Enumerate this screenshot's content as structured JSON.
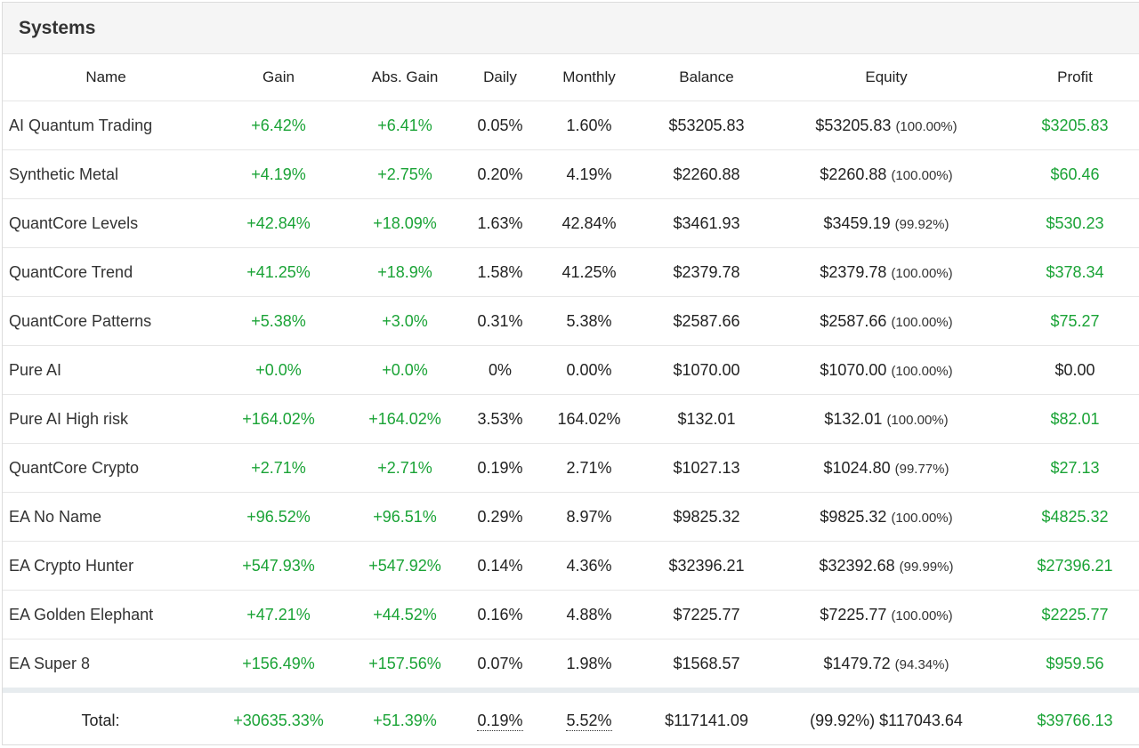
{
  "panel": {
    "title": "Systems"
  },
  "columns": {
    "name": "Name",
    "gain": "Gain",
    "abs_gain": "Abs. Gain",
    "daily": "Daily",
    "monthly": "Monthly",
    "balance": "Balance",
    "equity": "Equity",
    "profit": "Profit"
  },
  "rows": [
    {
      "name": "AI Quantum Trading",
      "gain": "+6.42%",
      "abs_gain": "+6.41%",
      "daily": "0.05%",
      "monthly": "1.60%",
      "balance": "$53205.83",
      "equity": "$53205.83",
      "equity_pct": "(100.00%)",
      "profit": "$3205.83",
      "profit_positive": true
    },
    {
      "name": "Synthetic Metal",
      "gain": "+4.19%",
      "abs_gain": "+2.75%",
      "daily": "0.20%",
      "monthly": "4.19%",
      "balance": "$2260.88",
      "equity": "$2260.88",
      "equity_pct": "(100.00%)",
      "profit": "$60.46",
      "profit_positive": true
    },
    {
      "name": "QuantCore Levels",
      "gain": "+42.84%",
      "abs_gain": "+18.09%",
      "daily": "1.63%",
      "monthly": "42.84%",
      "balance": "$3461.93",
      "equity": "$3459.19",
      "equity_pct": "(99.92%)",
      "profit": "$530.23",
      "profit_positive": true
    },
    {
      "name": "QuantCore Trend",
      "gain": "+41.25%",
      "abs_gain": "+18.9%",
      "daily": "1.58%",
      "monthly": "41.25%",
      "balance": "$2379.78",
      "equity": "$2379.78",
      "equity_pct": "(100.00%)",
      "profit": "$378.34",
      "profit_positive": true
    },
    {
      "name": "QuantCore Patterns",
      "gain": "+5.38%",
      "abs_gain": "+3.0%",
      "daily": "0.31%",
      "monthly": "5.38%",
      "balance": "$2587.66",
      "equity": "$2587.66",
      "equity_pct": "(100.00%)",
      "profit": "$75.27",
      "profit_positive": true
    },
    {
      "name": "Pure AI",
      "gain": "+0.0%",
      "abs_gain": "+0.0%",
      "daily": "0%",
      "monthly": "0.00%",
      "balance": "$1070.00",
      "equity": "$1070.00",
      "equity_pct": "(100.00%)",
      "profit": "$0.00",
      "profit_positive": false
    },
    {
      "name": "Pure AI High risk",
      "gain": "+164.02%",
      "abs_gain": "+164.02%",
      "daily": "3.53%",
      "monthly": "164.02%",
      "balance": "$132.01",
      "equity": "$132.01",
      "equity_pct": "(100.00%)",
      "profit": "$82.01",
      "profit_positive": true
    },
    {
      "name": "QuantCore Crypto",
      "gain": "+2.71%",
      "abs_gain": "+2.71%",
      "daily": "0.19%",
      "monthly": "2.71%",
      "balance": "$1027.13",
      "equity": "$1024.80",
      "equity_pct": "(99.77%)",
      "profit": "$27.13",
      "profit_positive": true
    },
    {
      "name": "EA No Name",
      "gain": "+96.52%",
      "abs_gain": "+96.51%",
      "daily": "0.29%",
      "monthly": "8.97%",
      "balance": "$9825.32",
      "equity": "$9825.32",
      "equity_pct": "(100.00%)",
      "profit": "$4825.32",
      "profit_positive": true
    },
    {
      "name": "EA Crypto Hunter",
      "gain": "+547.93%",
      "abs_gain": "+547.92%",
      "daily": "0.14%",
      "monthly": "4.36%",
      "balance": "$32396.21",
      "equity": "$32392.68",
      "equity_pct": "(99.99%)",
      "profit": "$27396.21",
      "profit_positive": true
    },
    {
      "name": "EA Golden Elephant",
      "gain": "+47.21%",
      "abs_gain": "+44.52%",
      "daily": "0.16%",
      "monthly": "4.88%",
      "balance": "$7225.77",
      "equity": "$7225.77",
      "equity_pct": "(100.00%)",
      "profit": "$2225.77",
      "profit_positive": true
    },
    {
      "name": "EA Super 8",
      "gain": "+156.49%",
      "abs_gain": "+157.56%",
      "daily": "0.07%",
      "monthly": "1.98%",
      "balance": "$1568.57",
      "equity": "$1479.72",
      "equity_pct": "(94.34%)",
      "profit": "$959.56",
      "profit_positive": true
    }
  ],
  "total": {
    "label": "Total:",
    "gain": "+30635.33%",
    "abs_gain": "+51.39%",
    "daily": "0.19%",
    "monthly": "5.52%",
    "balance": "$117141.09",
    "equity": "(99.92%) $117043.64",
    "profit": "$39766.13"
  },
  "colors": {
    "positive": "#1aa336",
    "neutral": "#222222",
    "header_bg": "#f5f5f5",
    "total_separator": "#e7ecef"
  }
}
